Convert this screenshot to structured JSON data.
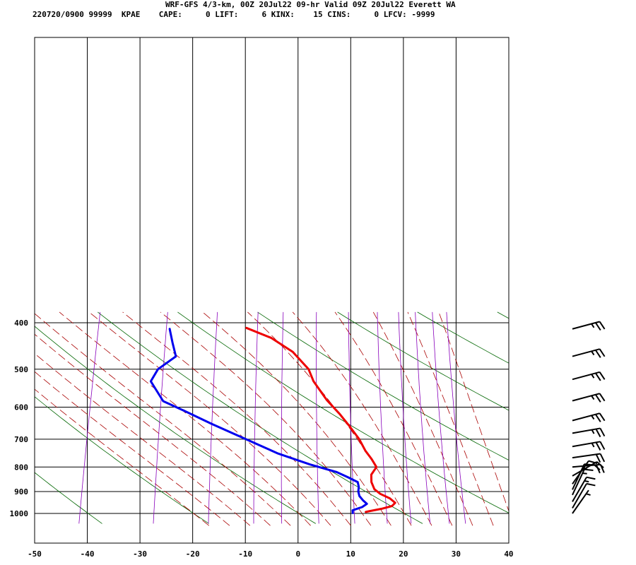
{
  "header": {
    "line1": "WRF-GFS 4/3-km, 00Z 20Jul22 09-hr Valid 09Z 20Jul22 Everett WA",
    "line2": "220720/0900 99999  KPAE    CAPE:     0 LIFT:     6 KINX:    15 CINS:     0 LFCV: -9999"
  },
  "colors": {
    "temperature": "#ee0000",
    "dewpoint": "#0000ee",
    "isotherm": "#000000",
    "dry_adiabat": "#006600",
    "moist_adiabat": "#aa0000",
    "mixing_ratio": "#8800bb",
    "wind_barb": "#000000"
  },
  "chart_data": {
    "type": "line",
    "subtype": "skew-T log-P sounding",
    "title": "WRF-GFS 4/3-km, 00Z 20Jul22 09-hr Valid 09Z 20Jul22 Everett WA",
    "xlabel": "",
    "ylabel": "",
    "xlim": [
      -50,
      40
    ],
    "ylim": [
      1040,
      400
    ],
    "y_scale": "log (pressure, inverted)",
    "x_ticks": [
      "-50",
      "-40",
      "-30",
      "-20",
      "-10",
      "0",
      "10",
      "20",
      "30",
      "40"
    ],
    "y_ticks": [
      "400",
      "500",
      "600",
      "700",
      "800",
      "900",
      "1000"
    ],
    "grid": true,
    "series": [
      {
        "kind": "temperature",
        "points": [
          {
            "p": 993,
            "x": 12.6
          },
          {
            "p": 990,
            "x": 13.1
          },
          {
            "p": 978,
            "x": 15.4
          },
          {
            "p": 965,
            "x": 17.2
          },
          {
            "p": 950,
            "x": 17.6
          },
          {
            "p": 930,
            "x": 16.3
          },
          {
            "p": 910,
            "x": 14.2
          },
          {
            "p": 890,
            "x": 12.8
          },
          {
            "p": 860,
            "x": 11.8
          },
          {
            "p": 830,
            "x": 11.3
          },
          {
            "p": 800,
            "x": 11.8
          },
          {
            "p": 770,
            "x": 10.4
          },
          {
            "p": 740,
            "x": 8.7
          },
          {
            "p": 700,
            "x": 6.8
          },
          {
            "p": 660,
            "x": 4.3
          },
          {
            "p": 620,
            "x": 1.5
          },
          {
            "p": 580,
            "x": -1.8
          },
          {
            "p": 530,
            "x": -5.5
          },
          {
            "p": 500,
            "x": -7.2
          },
          {
            "p": 460,
            "x": -11.3
          },
          {
            "p": 430,
            "x": -16.3
          },
          {
            "p": 410,
            "x": -21.6
          }
        ]
      },
      {
        "kind": "dewpoint",
        "points": [
          {
            "p": 998,
            "x": 10.2
          },
          {
            "p": 985,
            "x": 10.0
          },
          {
            "p": 970,
            "x": 11.6
          },
          {
            "p": 955,
            "x": 12.3
          },
          {
            "p": 940,
            "x": 11.4
          },
          {
            "p": 920,
            "x": 10.4
          },
          {
            "p": 900,
            "x": 9.9
          },
          {
            "p": 880,
            "x": 9.7
          },
          {
            "p": 860,
            "x": 9.2
          },
          {
            "p": 840,
            "x": 7.0
          },
          {
            "p": 820,
            "x": 4.6
          },
          {
            "p": 790,
            "x": -1.0
          },
          {
            "p": 750,
            "x": -7.7
          },
          {
            "p": 700,
            "x": -14.7
          },
          {
            "p": 650,
            "x": -22.2
          },
          {
            "p": 610,
            "x": -28.3
          },
          {
            "p": 583,
            "x": -32.8
          },
          {
            "p": 530,
            "x": -36.4
          },
          {
            "p": 500,
            "x": -35.8
          },
          {
            "p": 470,
            "x": -33.2
          },
          {
            "p": 440,
            "x": -34.7
          },
          {
            "p": 412,
            "x": -36.1
          }
        ]
      }
    ]
  },
  "wind_barbs": [
    {
      "p": 412,
      "dir": 255,
      "speed_kt": 25
    },
    {
      "p": 470,
      "dir": 255,
      "speed_kt": 25
    },
    {
      "p": 525,
      "dir": 255,
      "speed_kt": 25
    },
    {
      "p": 582,
      "dir": 255,
      "speed_kt": 25
    },
    {
      "p": 640,
      "dir": 255,
      "speed_kt": 25
    },
    {
      "p": 680,
      "dir": 260,
      "speed_kt": 25
    },
    {
      "p": 725,
      "dir": 260,
      "speed_kt": 25
    },
    {
      "p": 765,
      "dir": 262,
      "speed_kt": 20
    },
    {
      "p": 800,
      "dir": 265,
      "speed_kt": 20
    },
    {
      "p": 835,
      "dir": 240,
      "speed_kt": 20
    },
    {
      "p": 868,
      "dir": 215,
      "speed_kt": 15
    },
    {
      "p": 892,
      "dir": 205,
      "speed_kt": 15
    },
    {
      "p": 915,
      "dir": 205,
      "speed_kt": 15
    },
    {
      "p": 945,
      "dir": 210,
      "speed_kt": 15
    },
    {
      "p": 975,
      "dir": 210,
      "speed_kt": 10
    },
    {
      "p": 1000,
      "dir": 215,
      "speed_kt": 5
    }
  ]
}
